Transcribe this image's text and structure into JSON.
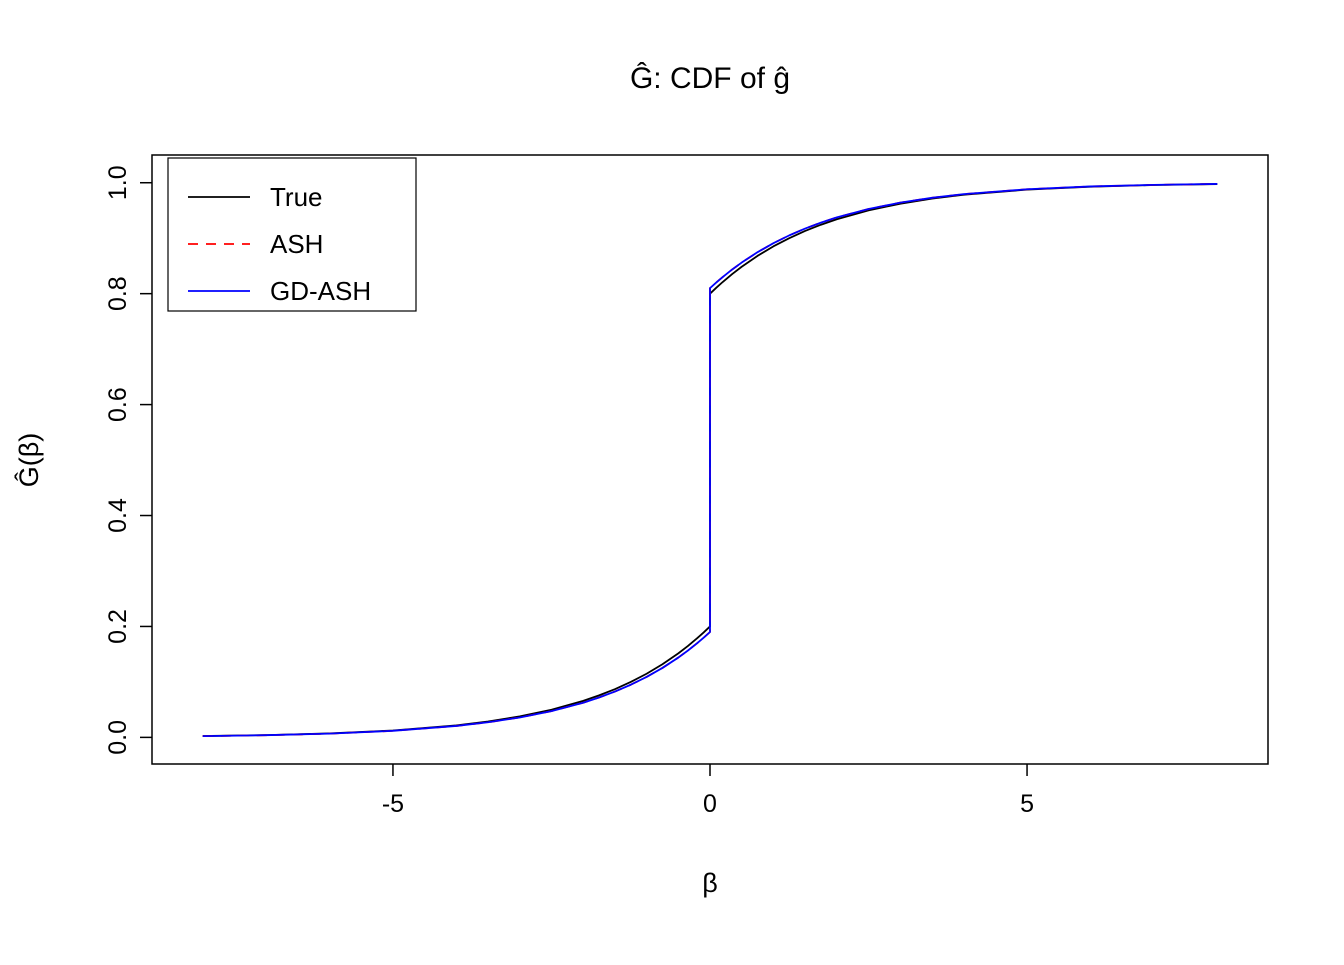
{
  "chart_data": {
    "type": "line",
    "title": "Ĝ: CDF of ĝ",
    "xlabel": "β",
    "ylabel": "Ĝ(β)",
    "xlim": [
      -8.8,
      8.8
    ],
    "ylim": [
      -0.048,
      1.05
    ],
    "x_ticks": [
      -5,
      0,
      5
    ],
    "x_tick_labels": [
      "-5",
      "0",
      "5"
    ],
    "y_ticks": [
      0.0,
      0.2,
      0.4,
      0.6,
      0.8,
      1.0
    ],
    "y_tick_labels": [
      "0.0",
      "0.2",
      "0.4",
      "0.6",
      "0.8",
      "1.0"
    ],
    "grid": false,
    "legend_position": "top-left",
    "legend_entries": [
      "True",
      "ASH",
      "GD-ASH"
    ],
    "colors": {
      "true": "#000000",
      "ash": "#FF0000",
      "gd_ash": "#0000FF"
    },
    "series": [
      {
        "name": "True",
        "color": "#000000",
        "dash": "solid",
        "points": [
          [
            -8,
            0.0024
          ],
          [
            -7,
            0.0041
          ],
          [
            -6,
            0.0071
          ],
          [
            -5,
            0.0124
          ],
          [
            -4,
            0.0217
          ],
          [
            -3.5,
            0.0287
          ],
          [
            -3,
            0.0378
          ],
          [
            -2.5,
            0.0499
          ],
          [
            -2,
            0.0658
          ],
          [
            -1.75,
            0.0757
          ],
          [
            -1.5,
            0.0869
          ],
          [
            -1.25,
            0.0999
          ],
          [
            -1,
            0.1147
          ],
          [
            -0.75,
            0.1318
          ],
          [
            -0.5,
            0.1515
          ],
          [
            -0.35,
            0.1647
          ],
          [
            -0.2,
            0.179
          ],
          [
            -0.1,
            0.1892
          ],
          [
            0,
            0.2
          ],
          [
            0,
            0.8
          ],
          [
            0.1,
            0.8108
          ],
          [
            0.2,
            0.821
          ],
          [
            0.35,
            0.8353
          ],
          [
            0.5,
            0.8485
          ],
          [
            0.75,
            0.8682
          ],
          [
            1,
            0.8853
          ],
          [
            1.25,
            0.9001
          ],
          [
            1.5,
            0.9131
          ],
          [
            1.75,
            0.9243
          ],
          [
            2,
            0.9342
          ],
          [
            2.5,
            0.9501
          ],
          [
            3,
            0.9622
          ],
          [
            3.5,
            0.9713
          ],
          [
            4,
            0.9783
          ],
          [
            5,
            0.9876
          ],
          [
            6,
            0.9929
          ],
          [
            7,
            0.9959
          ],
          [
            8,
            0.9976
          ]
        ]
      },
      {
        "name": "ASH",
        "color": "#FF0000",
        "dash": "dashed",
        "points": [
          [
            -8,
            0.0022
          ],
          [
            -7,
            0.0039
          ],
          [
            -6,
            0.0067
          ],
          [
            -5,
            0.0118
          ],
          [
            -4,
            0.0206
          ],
          [
            -3.5,
            0.0272
          ],
          [
            -3,
            0.0359
          ],
          [
            -2.5,
            0.0474
          ],
          [
            -2,
            0.0625
          ],
          [
            -1.75,
            0.0719
          ],
          [
            -1.5,
            0.0826
          ],
          [
            -1.25,
            0.0949
          ],
          [
            -1,
            0.109
          ],
          [
            -0.75,
            0.1252
          ],
          [
            -0.5,
            0.1439
          ],
          [
            -0.35,
            0.1564
          ],
          [
            -0.2,
            0.17
          ],
          [
            -0.1,
            0.1797
          ],
          [
            0,
            0.19
          ],
          [
            0,
            0.81
          ],
          [
            0.1,
            0.8203
          ],
          [
            0.2,
            0.83
          ],
          [
            0.35,
            0.8436
          ],
          [
            0.5,
            0.8561
          ],
          [
            0.75,
            0.8748
          ],
          [
            1,
            0.891
          ],
          [
            1.25,
            0.9051
          ],
          [
            1.5,
            0.9174
          ],
          [
            1.75,
            0.9281
          ],
          [
            2,
            0.9375
          ],
          [
            2.5,
            0.9526
          ],
          [
            3,
            0.9641
          ],
          [
            3.5,
            0.9728
          ],
          [
            4,
            0.9794
          ],
          [
            5,
            0.9882
          ],
          [
            6,
            0.9933
          ],
          [
            7,
            0.9961
          ],
          [
            8,
            0.9978
          ]
        ]
      },
      {
        "name": "GD-ASH",
        "color": "#0000FF",
        "dash": "solid",
        "points": [
          [
            -8,
            0.0022
          ],
          [
            -7,
            0.0039
          ],
          [
            -6,
            0.0067
          ],
          [
            -5,
            0.0118
          ],
          [
            -4,
            0.0206
          ],
          [
            -3.5,
            0.0272
          ],
          [
            -3,
            0.0359
          ],
          [
            -2.5,
            0.0474
          ],
          [
            -2,
            0.0625
          ],
          [
            -1.75,
            0.0719
          ],
          [
            -1.5,
            0.0826
          ],
          [
            -1.25,
            0.0949
          ],
          [
            -1,
            0.109
          ],
          [
            -0.75,
            0.1252
          ],
          [
            -0.5,
            0.1439
          ],
          [
            -0.35,
            0.1564
          ],
          [
            -0.2,
            0.17
          ],
          [
            -0.1,
            0.1797
          ],
          [
            0,
            0.19
          ],
          [
            0,
            0.81
          ],
          [
            0.1,
            0.8203
          ],
          [
            0.2,
            0.83
          ],
          [
            0.35,
            0.8436
          ],
          [
            0.5,
            0.8561
          ],
          [
            0.75,
            0.8748
          ],
          [
            1,
            0.891
          ],
          [
            1.25,
            0.9051
          ],
          [
            1.5,
            0.9174
          ],
          [
            1.75,
            0.9281
          ],
          [
            2,
            0.9375
          ],
          [
            2.5,
            0.9526
          ],
          [
            3,
            0.9641
          ],
          [
            3.5,
            0.9728
          ],
          [
            4,
            0.9794
          ],
          [
            5,
            0.9882
          ],
          [
            6,
            0.9933
          ],
          [
            7,
            0.9961
          ],
          [
            8,
            0.9978
          ]
        ]
      }
    ]
  }
}
